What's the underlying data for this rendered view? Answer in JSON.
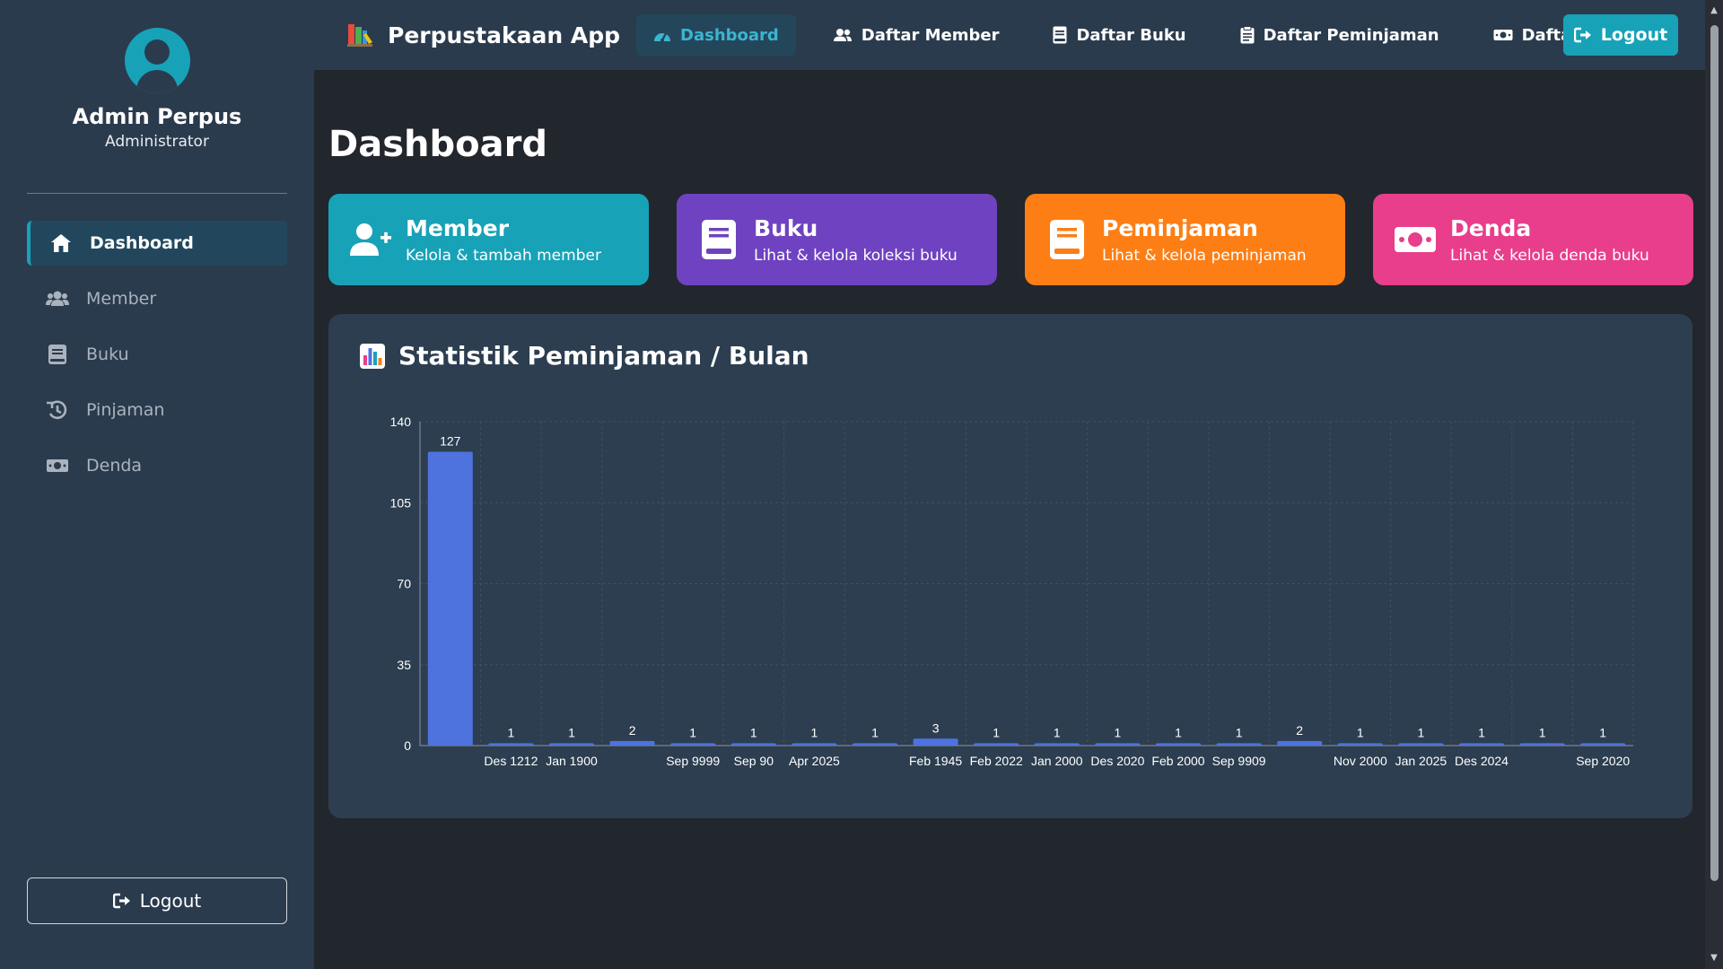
{
  "sidebar": {
    "profile": {
      "name": "Admin Perpus",
      "role": "Administrator"
    },
    "items": [
      {
        "label": "Dashboard",
        "icon": "home-icon",
        "active": true
      },
      {
        "label": "Member",
        "icon": "users-icon"
      },
      {
        "label": "Buku",
        "icon": "book-icon"
      },
      {
        "label": "Pinjaman",
        "icon": "history-icon"
      },
      {
        "label": "Denda",
        "icon": "money-icon"
      }
    ],
    "logout_label": "Logout"
  },
  "topnav": {
    "brand": "Perpustakaan App",
    "items": [
      {
        "label": "Dashboard",
        "icon": "tachometer-icon",
        "active": true
      },
      {
        "label": "Daftar Member",
        "icon": "users-icon"
      },
      {
        "label": "Daftar Buku",
        "icon": "book-icon"
      },
      {
        "label": "Daftar Peminjaman",
        "icon": "clipboard-icon"
      },
      {
        "label": "Daftar Denda",
        "icon": "money-icon"
      }
    ],
    "logout_label": "Logout"
  },
  "main": {
    "title": "Dashboard",
    "cards": [
      {
        "title": "Member",
        "subtitle": "Kelola & tambah member",
        "color": "#17a2b8",
        "icon": "user-plus-icon"
      },
      {
        "title": "Buku",
        "subtitle": "Lihat & kelola koleksi buku",
        "color": "#6f42c1",
        "icon": "book-icon"
      },
      {
        "title": "Peminjaman",
        "subtitle": "Lihat & kelola peminjaman",
        "color": "#fd7e14",
        "icon": "book-icon"
      },
      {
        "title": "Denda",
        "subtitle": "Lihat & kelola denda buku",
        "color": "#e83e8c",
        "icon": "money-icon"
      }
    ],
    "chart_title": "Statistik Peminjaman / Bulan"
  },
  "colors": {
    "accent": "#17a2b8",
    "bar": "#4e73df",
    "panel": "#2c3e50",
    "background": "#22262d"
  },
  "chart_data": {
    "type": "bar",
    "title": "Statistik Peminjaman / Bulan",
    "categories": [
      "",
      "Des 1212",
      "Jan 1900",
      "",
      "Sep 9999",
      "Sep 90",
      "Apr 2025",
      "",
      "Feb 1945",
      "Feb 2022",
      "Jan 2000",
      "Des 2020",
      "Feb 2000",
      "Sep 9909",
      "",
      "Nov 2000",
      "Jan 2025",
      "Des 2024",
      "",
      "Sep 2020"
    ],
    "values": [
      127,
      1,
      1,
      2,
      1,
      1,
      1,
      1,
      3,
      1,
      1,
      1,
      1,
      1,
      2,
      1,
      1,
      1,
      1,
      1
    ],
    "ylim": [
      0,
      140
    ],
    "yticks": [
      0,
      35,
      70,
      105,
      140
    ],
    "grid": true,
    "data_labels": true
  }
}
